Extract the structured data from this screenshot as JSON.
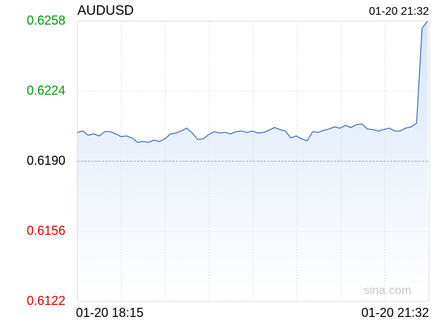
{
  "chart_data": {
    "type": "area-line",
    "title": "AUDUSD",
    "time": "01-20 21:32",
    "watermark": "sina.com",
    "categories": [
      "01-20 18:15",
      null,
      null,
      null,
      null,
      null,
      null,
      null,
      null,
      null,
      null,
      null,
      null,
      null,
      null,
      null,
      null,
      null,
      null,
      null,
      null,
      null,
      null,
      null,
      null,
      null,
      null,
      null,
      null,
      null,
      null,
      null,
      null,
      null,
      null,
      null,
      null,
      null,
      null,
      null,
      null,
      null,
      null,
      null,
      null,
      null,
      null,
      null,
      null,
      null,
      null,
      null,
      null,
      null,
      null,
      null,
      null,
      null,
      null,
      null,
      null,
      null,
      null,
      null,
      "01-20 21:32"
    ],
    "values": [
      0.6204,
      0.62047,
      0.62026,
      0.62033,
      0.62023,
      0.62044,
      0.62044,
      0.62033,
      0.6202,
      0.62023,
      0.62013,
      0.61992,
      0.61996,
      0.61992,
      0.62003,
      0.61996,
      0.62009,
      0.62033,
      0.62037,
      0.62047,
      0.62061,
      0.62037,
      0.62006,
      0.62009,
      0.6203,
      0.62044,
      0.62037,
      0.6204,
      0.62033,
      0.62044,
      0.62047,
      0.6204,
      0.62047,
      0.62037,
      0.6204,
      0.6205,
      0.62064,
      0.62054,
      0.62047,
      0.62013,
      0.62023,
      0.62009,
      0.61999,
      0.62044,
      0.6204,
      0.6205,
      0.62057,
      0.62067,
      0.62061,
      0.62074,
      0.62064,
      0.62078,
      0.62081,
      0.62057,
      0.62054,
      0.62047,
      0.62054,
      0.62061,
      0.62047,
      0.62047,
      0.62061,
      0.62067,
      0.62085,
      0.62546,
      0.6258
    ],
    "color": "#3d6cb5",
    "fill": "#d6e4f8",
    "ylim": [
      0.6122,
      0.6258
    ],
    "yticks": [
      {
        "value": 0.6258,
        "label": "0.6258"
      },
      {
        "value": 0.6224,
        "label": "0.6224"
      },
      {
        "value": 0.619,
        "label": "0.6190"
      },
      {
        "value": 0.6156,
        "label": "0.6156"
      },
      {
        "value": 0.6122,
        "label": "0.6122"
      }
    ],
    "ytick_colors": [
      "#009900",
      "#009900",
      "#000000",
      "#e00000",
      "#e00000"
    ],
    "baseline": 0.619,
    "grid": true
  }
}
